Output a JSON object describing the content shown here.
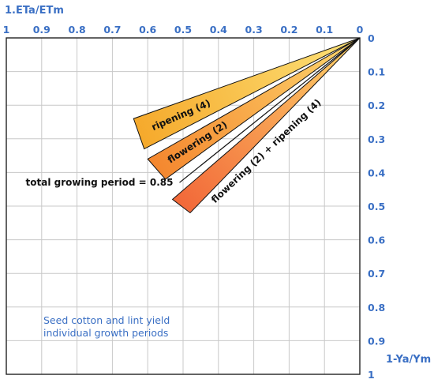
{
  "chart_data": {
    "type": "line",
    "title": "",
    "xlabel": "1.ETa/ETm",
    "ylabel": "1-Ya/Ym",
    "xlim": [
      1,
      0
    ],
    "ylim": [
      0,
      1
    ],
    "x_ticks": [
      "1",
      "0.9",
      "0.8",
      "0.7",
      "0.6",
      "0.5",
      "0.4",
      "0.3",
      "0.2",
      "0.1",
      "0"
    ],
    "y_ticks": [
      "0",
      "0.1",
      "0.2",
      "0.3",
      "0.4",
      "0.5",
      "0.6",
      "0.7",
      "0.8",
      "0.9",
      "1"
    ],
    "grid": true,
    "series": [
      {
        "name": "ripening (4)",
        "label": "ripening (4)",
        "x": [
          0,
          0.64
        ],
        "y": [
          0,
          0.24
        ],
        "x2": [
          0,
          0.61
        ],
        "y2": [
          0,
          0.33
        ],
        "color": "#f5b631"
      },
      {
        "name": "flowering (2)",
        "label": "flowering (2)",
        "x": [
          0,
          0.6
        ],
        "y": [
          0,
          0.36
        ],
        "x2": [
          0,
          0.55
        ],
        "y2": [
          0,
          0.42
        ],
        "color": "#f59a34"
      },
      {
        "name": "flowering (2) + ripening (4)",
        "label": "flowering (2) + ripening (4)",
        "x": [
          0,
          0.53
        ],
        "y": [
          0,
          0.48
        ],
        "x2": [
          0,
          0.48
        ],
        "y2": [
          0,
          0.52
        ],
        "color": "#f27a3c"
      },
      {
        "name": "total growing period = 0.85",
        "label": "total growing period = 0.85",
        "x": [
          0,
          0.51
        ],
        "y": [
          0,
          0.43
        ]
      }
    ],
    "annotation": [
      "Seed cotton and lint yield",
      "individual growth periods"
    ]
  }
}
